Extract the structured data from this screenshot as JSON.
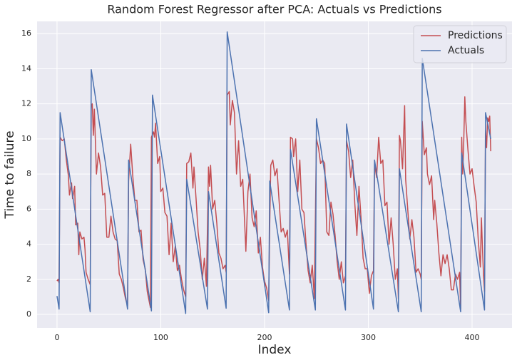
{
  "chart_data": {
    "type": "line",
    "title": "Random Forest Regressor after PCA: Actuals vs Predictions",
    "xlabel": "Index",
    "ylabel": "Time to failure",
    "xlim": [
      -19.2,
      438.5
    ],
    "xticks": [
      0,
      100,
      200,
      300,
      400
    ],
    "ylim": [
      -0.77,
      16.7
    ],
    "yticks": [
      0,
      2,
      4,
      6,
      8,
      10,
      12,
      14,
      16
    ],
    "grid": true,
    "legend": "upper right",
    "series": [
      {
        "name": "Predictions",
        "color": "#c44e52",
        "x": [
          0,
          1,
          2,
          3,
          5,
          7,
          9,
          11,
          12,
          14,
          15,
          17,
          18,
          20,
          21,
          22,
          24,
          26,
          27,
          28,
          30,
          32,
          33,
          34,
          35,
          36,
          38,
          40,
          42,
          44,
          46,
          48,
          50,
          52,
          54,
          56,
          58,
          60,
          62,
          64,
          66,
          68,
          69,
          71,
          73,
          75,
          77,
          79,
          81,
          83,
          85,
          87,
          89,
          90,
          91,
          93,
          94,
          95,
          97,
          99,
          100,
          102,
          104,
          106,
          108,
          110,
          112,
          114,
          116,
          118,
          120,
          122,
          124,
          125,
          127,
          129,
          131,
          132,
          134,
          136,
          138,
          140,
          142,
          144,
          146,
          147,
          148,
          150,
          152,
          154,
          156,
          158,
          160,
          162,
          163,
          164,
          166,
          167,
          169,
          171,
          173,
          175,
          177,
          179,
          181,
          182,
          184,
          186,
          188,
          190,
          192,
          194,
          196,
          198,
          200,
          202,
          204,
          205,
          206,
          208,
          210,
          212,
          214,
          216,
          218,
          220,
          222,
          224,
          225,
          227,
          228,
          230,
          232,
          234,
          236,
          238,
          240,
          242,
          244,
          246,
          248,
          250,
          252,
          254,
          256,
          258,
          260,
          262,
          264,
          266,
          268,
          270,
          272,
          274,
          276,
          278,
          279,
          281,
          283,
          285,
          287,
          289,
          291,
          293,
          295,
          297,
          299,
          301,
          303,
          305,
          306,
          308,
          310,
          312,
          314,
          316,
          318,
          320,
          322,
          324,
          326,
          328,
          329,
          330,
          331,
          333,
          335,
          336,
          338,
          340,
          342,
          344,
          346,
          348,
          350,
          351,
          352,
          354,
          356,
          357,
          359,
          361,
          363,
          364,
          366,
          368,
          370,
          372,
          374,
          376,
          378,
          380,
          382,
          384,
          386,
          388,
          389,
          390,
          391,
          392,
          393,
          394,
          396,
          398,
          400,
          402,
          404,
          406,
          408,
          409,
          410,
          411,
          412,
          413,
          414,
          415,
          416,
          417,
          418
        ],
        "values": [
          1.9,
          2.0,
          1.8,
          10.1,
          9.9,
          10.0,
          8.8,
          7.9,
          6.8,
          7.5,
          6.6,
          7.3,
          5.1,
          5.2,
          3.4,
          4.7,
          4.3,
          4.4,
          3.7,
          2.4,
          2.0,
          1.7,
          11.8,
          12.0,
          10.2,
          11.7,
          8.0,
          9.2,
          8.4,
          6.8,
          6.9,
          4.4,
          4.4,
          5.6,
          4.7,
          4.3,
          4.2,
          2.3,
          2.0,
          1.5,
          0.9,
          0.5,
          7.6,
          9.7,
          7.9,
          6.5,
          6.5,
          4.7,
          4.8,
          3.1,
          2.6,
          1.3,
          0.7,
          0.4,
          10.1,
          10.4,
          10.1,
          10.9,
          8.6,
          9.0,
          7.0,
          7.2,
          5.8,
          5.6,
          3.4,
          5.2,
          3.0,
          3.9,
          2.5,
          2.8,
          2.0,
          1.4,
          1.0,
          8.6,
          8.7,
          9.2,
          7.2,
          8.4,
          6.6,
          4.7,
          3.7,
          2.0,
          3.2,
          1.6,
          8.4,
          7.3,
          8.5,
          6.0,
          6.5,
          5.2,
          3.5,
          3.2,
          2.6,
          2.8,
          2.4,
          12.5,
          12.7,
          10.8,
          12.2,
          11.5,
          8.0,
          9.9,
          7.3,
          7.7,
          5.0,
          3.6,
          7.0,
          8.0,
          5.5,
          5.0,
          5.9,
          3.5,
          4.4,
          2.7,
          1.9,
          1.5,
          0.8,
          5.1,
          8.5,
          8.8,
          7.9,
          8.3,
          6.5,
          4.7,
          4.9,
          4.4,
          4.8,
          2.3,
          10.1,
          10.0,
          9.0,
          10.0,
          7.0,
          8.8,
          6.0,
          5.8,
          4.0,
          2.5,
          1.8,
          2.8,
          0.9,
          10.0,
          9.5,
          8.6,
          8.8,
          8.6,
          4.7,
          4.5,
          6.4,
          5.7,
          4.5,
          3.0,
          2.0,
          3.0,
          1.8,
          2.2,
          9.9,
          9.3,
          7.8,
          8.8,
          6.3,
          4.5,
          7.3,
          5.5,
          3.2,
          2.6,
          2.6,
          1.2,
          2.2,
          2.5,
          8.6,
          7.8,
          10.1,
          8.6,
          8.8,
          6.2,
          6.4,
          4.0,
          5.5,
          4.0,
          2.0,
          2.6,
          0.9,
          10.2,
          9.9,
          8.3,
          11.9,
          7.7,
          6.0,
          4.3,
          5.4,
          4.4,
          2.4,
          2.6,
          2.3,
          2.0,
          11.0,
          9.1,
          9.5,
          8.0,
          7.4,
          7.9,
          5.4,
          6.5,
          5.2,
          3.5,
          2.2,
          3.4,
          2.9,
          3.4,
          2.6,
          1.4,
          1.4,
          2.3,
          2.0,
          2.4,
          0.3,
          10.1,
          8.0,
          9.9,
          12.4,
          11.0,
          9.4,
          8.0,
          8.3,
          7.3,
          6.4,
          4.2,
          2.7,
          5.5,
          3.8,
          2.3,
          1.3,
          10.5,
          9.5,
          11.2,
          11.0,
          11.3,
          9.3
        ]
      },
      {
        "name": "Actuals",
        "color": "#4c72b0",
        "x": [
          0,
          2,
          3,
          32,
          33,
          68,
          69,
          91,
          92,
          124,
          125,
          145,
          146,
          163,
          164,
          204,
          205,
          224,
          225,
          249,
          250,
          278,
          279,
          305,
          306,
          329,
          330,
          351,
          352,
          389,
          390,
          412,
          413,
          418
        ],
        "values": [
          1.05,
          0.3,
          11.5,
          0.15,
          13.95,
          0.3,
          8.8,
          0.2,
          12.5,
          0.05,
          7.7,
          0.3,
          7.0,
          0.35,
          16.1,
          0.1,
          7.6,
          0.25,
          9.4,
          0.25,
          11.15,
          0.25,
          10.85,
          0.3,
          8.8,
          0.15,
          8.3,
          0.15,
          14.6,
          0.15,
          9.2,
          0.25,
          11.5,
          10.0
        ]
      }
    ]
  }
}
